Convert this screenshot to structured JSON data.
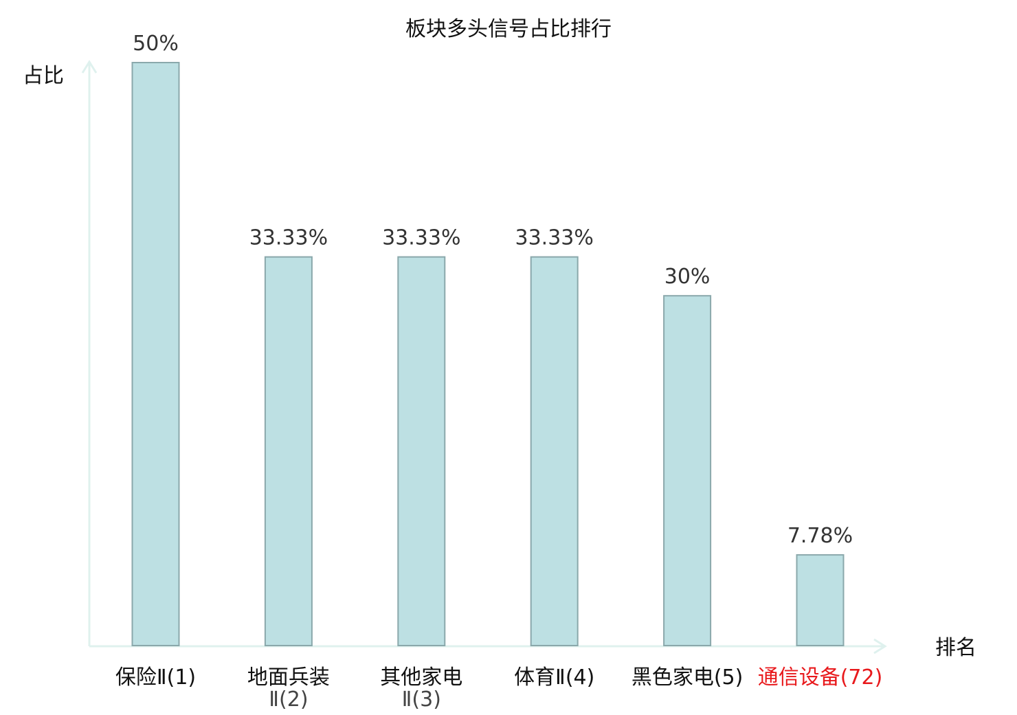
{
  "chart_data": {
    "type": "bar",
    "title": "板块多头信号占比排行",
    "ylabel": "占比",
    "xlabel": "排名",
    "ylim": [
      0,
      50
    ],
    "grid": false,
    "legend": "none",
    "unit": "%",
    "categories": [
      {
        "name": "保险Ⅱ",
        "rank": "(1)",
        "lines": [
          "保险Ⅱ(1)"
        ]
      },
      {
        "name": "地面兵装Ⅱ",
        "rank": "(2)",
        "lines": [
          "地面兵装",
          "Ⅱ(2)"
        ]
      },
      {
        "name": "其他家电Ⅱ",
        "rank": "(3)",
        "lines": [
          "其他家电",
          "Ⅱ(3)"
        ]
      },
      {
        "name": "体育Ⅱ",
        "rank": "(4)",
        "lines": [
          "体育Ⅱ(4)"
        ]
      },
      {
        "name": "黑色家电",
        "rank": "(5)",
        "lines": [
          "黑色家电(5)"
        ]
      },
      {
        "name": "通信设备",
        "rank": "(72)",
        "lines": [
          "通信设备(72)"
        ],
        "highlight": true
      }
    ],
    "values": [
      50,
      33.33,
      33.33,
      33.33,
      30,
      7.78
    ],
    "value_labels": [
      "50%",
      "33.33%",
      "33.33%",
      "33.33%",
      "30%",
      "7.78%"
    ]
  },
  "colors": {
    "bar_fill": "#bde0e3",
    "bar_stroke": "#8aa8ab",
    "axis": "#dff1ee",
    "highlight_text": "#e8191c",
    "text": "#111111",
    "value_text": "#333333"
  }
}
